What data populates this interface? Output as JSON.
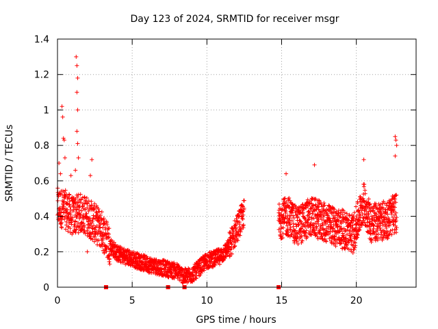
{
  "chart_data": {
    "type": "scatter",
    "title": "Day 123 of 2024, SRMTID for receiver msgr",
    "xlabel": "GPS time / hours",
    "ylabel": "SRMTID / TECUs",
    "xlim": [
      0,
      24
    ],
    "ylim": [
      0,
      1.4
    ],
    "xticks": [
      0,
      5,
      10,
      15,
      20
    ],
    "yticks": [
      0,
      0.2,
      0.4,
      0.6,
      0.8,
      1,
      1.2,
      1.4
    ],
    "ytick_labels": [
      "0",
      "0.2",
      "0.4",
      "0.6",
      "0.8",
      "1",
      "1.2",
      "1.4"
    ],
    "grid": true,
    "marker": "+",
    "color": "#ff0000",
    "profile": [
      {
        "x": 0.0,
        "y": 0.45
      },
      {
        "x": 0.5,
        "y": 0.44
      },
      {
        "x": 1.0,
        "y": 0.4
      },
      {
        "x": 1.5,
        "y": 0.42
      },
      {
        "x": 2.0,
        "y": 0.4
      },
      {
        "x": 2.5,
        "y": 0.36
      },
      {
        "x": 3.0,
        "y": 0.32
      },
      {
        "x": 3.5,
        "y": 0.24
      },
      {
        "x": 4.0,
        "y": 0.19
      },
      {
        "x": 5.0,
        "y": 0.16
      },
      {
        "x": 6.0,
        "y": 0.13
      },
      {
        "x": 7.0,
        "y": 0.11
      },
      {
        "x": 8.0,
        "y": 0.09
      },
      {
        "x": 8.5,
        "y": 0.06
      },
      {
        "x": 9.0,
        "y": 0.07
      },
      {
        "x": 9.5,
        "y": 0.11
      },
      {
        "x": 10.0,
        "y": 0.15
      },
      {
        "x": 10.5,
        "y": 0.16
      },
      {
        "x": 11.0,
        "y": 0.18
      },
      {
        "x": 11.5,
        "y": 0.23
      },
      {
        "x": 12.0,
        "y": 0.33
      },
      {
        "x": 12.5,
        "y": 0.42
      }
    ],
    "gap_profile": [
      {
        "x": 14.8,
        "y": 0.38
      },
      {
        "x": 15.5,
        "y": 0.4
      },
      {
        "x": 16.0,
        "y": 0.34
      },
      {
        "x": 17.0,
        "y": 0.4
      },
      {
        "x": 18.0,
        "y": 0.36
      },
      {
        "x": 19.0,
        "y": 0.33
      },
      {
        "x": 19.8,
        "y": 0.3
      },
      {
        "x": 20.5,
        "y": 0.48
      },
      {
        "x": 21.0,
        "y": 0.36
      },
      {
        "x": 22.0,
        "y": 0.38
      },
      {
        "x": 22.7,
        "y": 0.42
      }
    ],
    "spikes": [
      {
        "x": 0.1,
        "y": 0.7
      },
      {
        "x": 0.3,
        "y": 1.02
      },
      {
        "x": 0.35,
        "y": 0.96
      },
      {
        "x": 0.4,
        "y": 0.84
      },
      {
        "x": 0.45,
        "y": 0.83
      },
      {
        "x": 0.5,
        "y": 0.73
      },
      {
        "x": 1.25,
        "y": 1.3
      },
      {
        "x": 1.3,
        "y": 1.25
      },
      {
        "x": 1.35,
        "y": 1.18
      },
      {
        "x": 1.3,
        "y": 1.1
      },
      {
        "x": 1.35,
        "y": 1.0
      },
      {
        "x": 1.3,
        "y": 0.88
      },
      {
        "x": 1.35,
        "y": 0.81
      },
      {
        "x": 1.4,
        "y": 0.73
      },
      {
        "x": 1.2,
        "y": 0.66
      },
      {
        "x": 2.3,
        "y": 0.72
      },
      {
        "x": 2.2,
        "y": 0.63
      },
      {
        "x": 22.6,
        "y": 0.85
      },
      {
        "x": 22.65,
        "y": 0.83
      },
      {
        "x": 22.7,
        "y": 0.8
      },
      {
        "x": 22.6,
        "y": 0.74
      },
      {
        "x": 20.5,
        "y": 0.72
      },
      {
        "x": 17.2,
        "y": 0.69
      },
      {
        "x": 15.3,
        "y": 0.64
      },
      {
        "x": 0.2,
        "y": 0.64
      },
      {
        "x": 0.9,
        "y": 0.63
      },
      {
        "x": 2.0,
        "y": 0.2
      }
    ],
    "squares": [
      3.25,
      7.4,
      8.5,
      14.8
    ]
  }
}
